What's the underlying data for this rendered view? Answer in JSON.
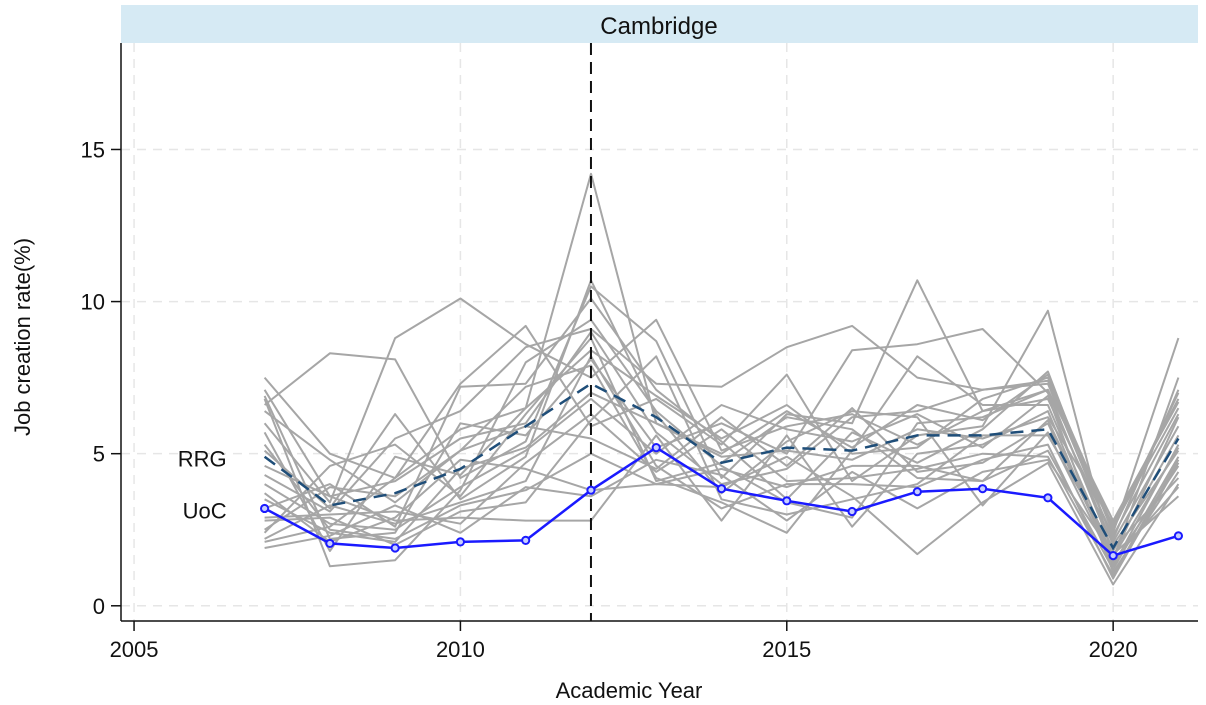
{
  "chart_data": {
    "type": "line",
    "title": "Cambridge",
    "xlabel": "Academic Year",
    "ylabel": "Job creation rate(%)",
    "xlim": [
      2004.8,
      2021.3
    ],
    "ylim": [
      -0.5,
      18.5
    ],
    "xticks": [
      2005,
      2010,
      2015,
      2020
    ],
    "yticks": [
      0,
      5,
      10,
      15
    ],
    "grid": true,
    "reference_line_x": 2012,
    "x": [
      2007,
      2008,
      2009,
      2010,
      2011,
      2012,
      2013,
      2014,
      2015,
      2016,
      2017,
      2018,
      2019,
      2020,
      2021
    ],
    "series": [
      {
        "name": "RRG",
        "style": "dashed",
        "color": "#1f4e79",
        "values": [
          4.9,
          3.3,
          3.7,
          4.5,
          5.9,
          7.3,
          6.2,
          4.7,
          5.2,
          5.1,
          5.6,
          5.6,
          5.8,
          1.9,
          5.5
        ]
      },
      {
        "name": "UoC",
        "style": "solid-markers",
        "color": "#1a1aff",
        "values": [
          3.2,
          2.05,
          1.9,
          2.1,
          2.15,
          3.8,
          5.2,
          3.85,
          3.45,
          3.1,
          3.75,
          3.85,
          3.55,
          1.65,
          2.3
        ]
      }
    ],
    "peer_series": [
      [
        7.5,
        5.0,
        4.2,
        5.8,
        6.5,
        14.2,
        6.0,
        5.0,
        6.4,
        5.2,
        6.6,
        6.1,
        7.6,
        2.4,
        8.8
      ],
      [
        6.6,
        8.3,
        8.1,
        4.2,
        5.4,
        10.5,
        8.7,
        4.2,
        6.3,
        6.0,
        10.7,
        6.4,
        7.1,
        1.8,
        5.6
      ],
      [
        6.0,
        3.4,
        8.8,
        10.1,
        8.6,
        7.5,
        9.4,
        5.1,
        5.9,
        6.3,
        5.3,
        6.4,
        6.8,
        2.3,
        6.3
      ],
      [
        2.1,
        2.6,
        4.2,
        7.3,
        9.2,
        5.9,
        6.8,
        5.3,
        7.6,
        4.1,
        5.6,
        5.9,
        9.7,
        1.5,
        7.5
      ],
      [
        6.4,
        4.8,
        3.4,
        5.1,
        7.2,
        7.9,
        4.2,
        3.4,
        2.4,
        5.1,
        8.2,
        6.6,
        6.6,
        1.6,
        5.2
      ],
      [
        5.1,
        3.2,
        6.3,
        3.5,
        4.9,
        10.7,
        6.3,
        3.7,
        5.4,
        6.4,
        6.2,
        3.3,
        5.7,
        1.4,
        4.6
      ],
      [
        2.4,
        4.6,
        5.3,
        3.6,
        6.3,
        8.8,
        4.1,
        4.7,
        6.2,
        5.8,
        4.2,
        4.1,
        6.1,
        1.6,
        6.2
      ],
      [
        6.8,
        1.3,
        1.5,
        3.8,
        8.0,
        9.4,
        6.4,
        4.6,
        3.4,
        2.9,
        6.0,
        6.2,
        7.1,
        2.8,
        6.7
      ],
      [
        4.3,
        3.1,
        5.5,
        6.4,
        8.5,
        9.1,
        7.3,
        7.2,
        8.5,
        9.2,
        7.5,
        7.1,
        7.4,
        2.5,
        7.0
      ],
      [
        3.2,
        4.0,
        2.6,
        7.2,
        7.3,
        10.1,
        7.1,
        5.4,
        3.5,
        5.7,
        4.7,
        5.8,
        7.7,
        2.1,
        5.9
      ],
      [
        6.9,
        2.2,
        2.4,
        6.0,
        5.6,
        8.1,
        5.2,
        6.0,
        5.0,
        8.4,
        8.6,
        9.1,
        7.0,
        2.0,
        5.1
      ],
      [
        2.9,
        3.0,
        3.1,
        2.7,
        4.7,
        6.3,
        4.4,
        5.8,
        4.1,
        4.2,
        4.5,
        5.0,
        4.9,
        1.0,
        4.8
      ],
      [
        5.3,
        2.5,
        2.2,
        3.3,
        3.8,
        5.0,
        4.0,
        4.5,
        3.9,
        4.6,
        4.6,
        4.1,
        5.1,
        1.2,
        4.9
      ],
      [
        3.7,
        2.1,
        2.9,
        4.8,
        4.5,
        3.8,
        4.0,
        3.9,
        4.9,
        3.6,
        1.7,
        3.4,
        4.7,
        0.7,
        4.0
      ],
      [
        7.1,
        3.6,
        2.8,
        2.9,
        2.8,
        2.8,
        5.6,
        2.8,
        5.6,
        2.6,
        5.0,
        5.3,
        6.4,
        1.3,
        5.3
      ],
      [
        2.8,
        2.9,
        2.0,
        3.1,
        3.4,
        6.1,
        8.2,
        3.5,
        3.0,
        3.5,
        4.0,
        5.6,
        5.6,
        1.9,
        4.2
      ],
      [
        4.6,
        3.6,
        4.1,
        5.5,
        6.0,
        9.0,
        5.7,
        4.0,
        4.5,
        6.2,
        6.4,
        7.1,
        7.3,
        2.2,
        7.1
      ],
      [
        1.9,
        2.3,
        3.3,
        2.4,
        3.9,
        3.6,
        4.8,
        4.3,
        2.8,
        4.4,
        3.2,
        4.4,
        4.8,
        1.7,
        3.6
      ],
      [
        4.0,
        2.7,
        2.5,
        3.9,
        5.1,
        6.8,
        5.0,
        6.6,
        5.8,
        5.4,
        6.3,
        5.2,
        6.9,
        1.1,
        4.4
      ],
      [
        5.7,
        1.8,
        4.9,
        4.3,
        6.5,
        8.4,
        6.9,
        5.5,
        6.6,
        5.0,
        5.2,
        6.8,
        7.5,
        2.6,
        6.5
      ],
      [
        2.5,
        3.9,
        3.6,
        5.1,
        5.9,
        5.5,
        4.5,
        6.2,
        4.6,
        6.5,
        4.4,
        4.7,
        6.0,
        1.5,
        3.9
      ],
      [
        3.5,
        2.4,
        2.1,
        4.5,
        5.2,
        7.0,
        6.0,
        4.9,
        5.1,
        4.8,
        5.8,
        5.5,
        6.2,
        2.7,
        6.8
      ],
      [
        2.2,
        3.3,
        2.7,
        3.4,
        4.1,
        8.2,
        4.6,
        3.2,
        4.0,
        4.0,
        3.9,
        4.8,
        5.3,
        0.9,
        4.7
      ]
    ]
  }
}
